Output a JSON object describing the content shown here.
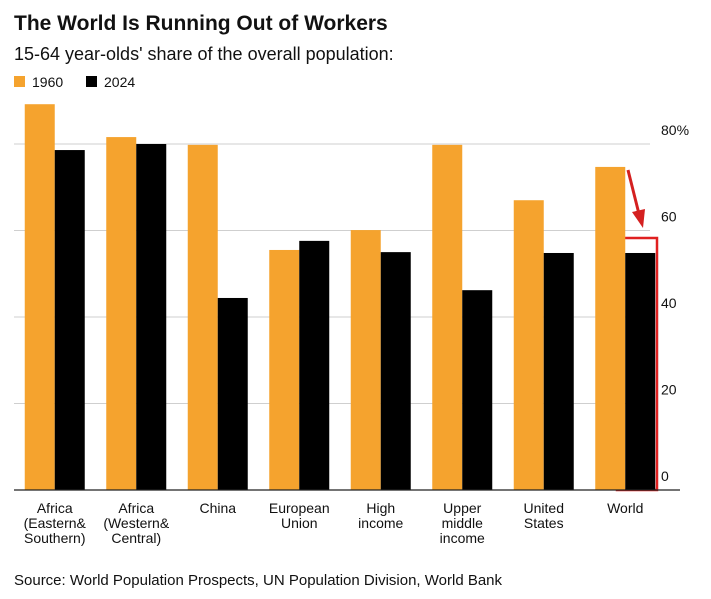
{
  "chart_data": {
    "type": "bar",
    "title": "The World Is Running Out of Workers",
    "subtitle": "15-64 year-olds' share of the overall population:",
    "source": "Source: World Population Prospects, UN Population Division, World Bank",
    "categories": [
      "Africa\n(Eastern&\nSouthern)",
      "Africa\n(Western&\nCentral)",
      "China",
      "European\nUnion",
      "High\nincome",
      "Upper\nmiddle\nincome",
      "United\nStates",
      "World"
    ],
    "series": [
      {
        "name": "1960",
        "color": "#f5a32e",
        "values": [
          89.2,
          81.6,
          79.8,
          55.5,
          60.1,
          79.8,
          67,
          74.7
        ]
      },
      {
        "name": "2024",
        "color": "#000000",
        "values": [
          78.6,
          80,
          44.4,
          57.6,
          55,
          46.2,
          54.8,
          54.8
        ]
      }
    ],
    "ylim": [
      0,
      90
    ],
    "yticks": [
      0,
      20,
      40,
      60,
      {
        "value": 80,
        "label": "80%"
      }
    ],
    "grid": true
  }
}
